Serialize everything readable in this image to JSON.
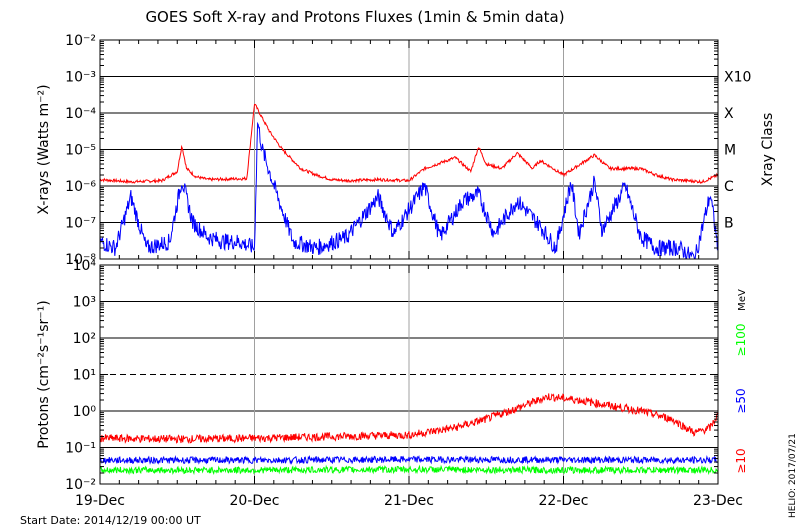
{
  "title": "GOES Soft X-ray and Protons Fluxes   (1min & 5min data)",
  "start_date": "Start Date: 2014/12/19 00:00 UT",
  "credit": "HELIO: 2017/07/21",
  "colors": {
    "red": "#ff0000",
    "blue": "#0000ff",
    "green": "#00ff00",
    "frame": "#000000",
    "marker": "#a0a0a0"
  },
  "chart_data": [
    {
      "type": "line",
      "panel": "xray",
      "ylabel": "X-rays (Watts m⁻²)",
      "yscale": "log",
      "ylim": [
        1e-08,
        0.01
      ],
      "ytick_labels": [
        "10⁻²",
        "10⁻³",
        "10⁻⁴",
        "10⁻⁵",
        "10⁻⁶",
        "10⁻⁷",
        "10⁻⁸"
      ],
      "ytick_values": [
        0.01,
        0.001,
        0.0001,
        1e-05,
        1e-06,
        1e-07,
        1e-08
      ],
      "right_axis_title": "Xray Class",
      "class_labels": [
        {
          "label": "X10",
          "value": 0.001
        },
        {
          "label": "X",
          "value": 0.0001
        },
        {
          "label": "M",
          "value": 1e-05
        },
        {
          "label": "C",
          "value": 1e-06
        },
        {
          "label": "B",
          "value": 1e-07
        }
      ],
      "grid_lines": [
        0.001,
        0.0001,
        1e-05,
        1e-06,
        1e-07
      ],
      "series": [
        {
          "color": "red",
          "days": [
            0,
            0.2,
            0.4,
            0.5,
            0.53,
            0.56,
            0.62,
            0.7,
            0.95,
            1.0,
            1.1,
            1.18,
            1.3,
            1.4,
            1.5,
            1.6,
            1.8,
            2.0,
            2.1,
            2.3,
            2.4,
            2.45,
            2.5,
            2.6,
            2.7,
            2.8,
            2.85,
            3.0,
            3.2,
            3.3,
            3.5,
            3.6,
            3.7,
            3.9,
            4.0
          ],
          "values": [
            1.5e-06,
            1.3e-06,
            1.4e-06,
            2.5e-06,
            1.3e-05,
            3e-06,
            1.8e-06,
            1.5e-06,
            1.6e-06,
            0.00018,
            3e-05,
            1e-05,
            3e-06,
            2e-06,
            1.5e-06,
            1.4e-06,
            1.5e-06,
            1.4e-06,
            3e-06,
            6e-06,
            2.5e-06,
            1.2e-05,
            4e-06,
            3e-06,
            8e-06,
            3e-06,
            5e-06,
            2e-06,
            7e-06,
            3e-06,
            3e-06,
            2e-06,
            1.5e-06,
            1.3e-06,
            2e-06
          ]
        },
        {
          "color": "blue",
          "days": [
            0,
            0.1,
            0.2,
            0.3,
            0.45,
            0.53,
            0.6,
            0.7,
            0.8,
            0.9,
            1.0,
            1.02,
            1.05,
            1.15,
            1.25,
            1.4,
            1.6,
            1.8,
            1.9,
            2.1,
            2.2,
            2.35,
            2.45,
            2.55,
            2.7,
            2.85,
            2.95,
            3.05,
            3.1,
            3.2,
            3.25,
            3.4,
            3.5,
            3.6,
            3.75,
            3.85,
            3.95,
            4.0
          ],
          "values": [
            3e-08,
            2e-08,
            5e-07,
            2e-08,
            3e-08,
            1.5e-06,
            1e-07,
            4e-08,
            3e-08,
            3e-08,
            2e-08,
            6e-05,
            1e-05,
            5e-07,
            3e-08,
            2e-08,
            4e-08,
            5e-07,
            5e-08,
            1e-06,
            4e-08,
            4e-07,
            6e-07,
            5e-08,
            4e-07,
            8e-08,
            2e-08,
            1.3e-06,
            5e-08,
            1.3e-06,
            6e-08,
            1e-06,
            4e-08,
            2e-08,
            2e-08,
            1e-08,
            6e-07,
            2e-08
          ]
        }
      ]
    },
    {
      "type": "line",
      "panel": "protons",
      "ylabel": "Protons (cm⁻²s⁻¹sr⁻¹)",
      "yscale": "log",
      "ylim": [
        0.01,
        10000
      ],
      "ytick_labels": [
        "10⁴",
        "10³",
        "10²",
        "10¹",
        "10⁰",
        "10⁻¹",
        "10⁻²"
      ],
      "ytick_values": [
        10000,
        1000,
        100,
        10,
        1,
        0.1,
        0.01
      ],
      "grid_lines": [
        1000,
        100,
        1,
        0.1
      ],
      "dashed_lines": [
        10
      ],
      "right_axis_title": "MeV",
      "series": [
        {
          "name": "≥10",
          "color": "red",
          "days": [
            0,
            0.5,
            1.0,
            1.5,
            2.0,
            2.3,
            2.5,
            2.7,
            2.9,
            3.1,
            3.3,
            3.5,
            3.7,
            3.85,
            3.95,
            4.0
          ],
          "values": [
            0.18,
            0.17,
            0.18,
            0.2,
            0.22,
            0.35,
            0.6,
            1.2,
            2.5,
            2.0,
            1.4,
            1.0,
            0.6,
            0.25,
            0.35,
            0.8
          ]
        },
        {
          "name": "≥50",
          "color": "blue",
          "days": [
            0,
            1.0,
            2.0,
            3.0,
            4.0
          ],
          "values": [
            0.045,
            0.045,
            0.047,
            0.046,
            0.045
          ]
        },
        {
          "name": "≥100",
          "color": "green",
          "days": [
            0,
            1.0,
            2.0,
            3.0,
            4.0
          ],
          "values": [
            0.024,
            0.024,
            0.025,
            0.024,
            0.024
          ]
        }
      ]
    }
  ],
  "x_axis": {
    "tick_labels": [
      "19-Dec",
      "20-Dec",
      "21-Dec",
      "22-Dec",
      "23-Dec"
    ],
    "tick_days": [
      0,
      1,
      2,
      3,
      4
    ],
    "day_markers": [
      1,
      2,
      3
    ]
  }
}
